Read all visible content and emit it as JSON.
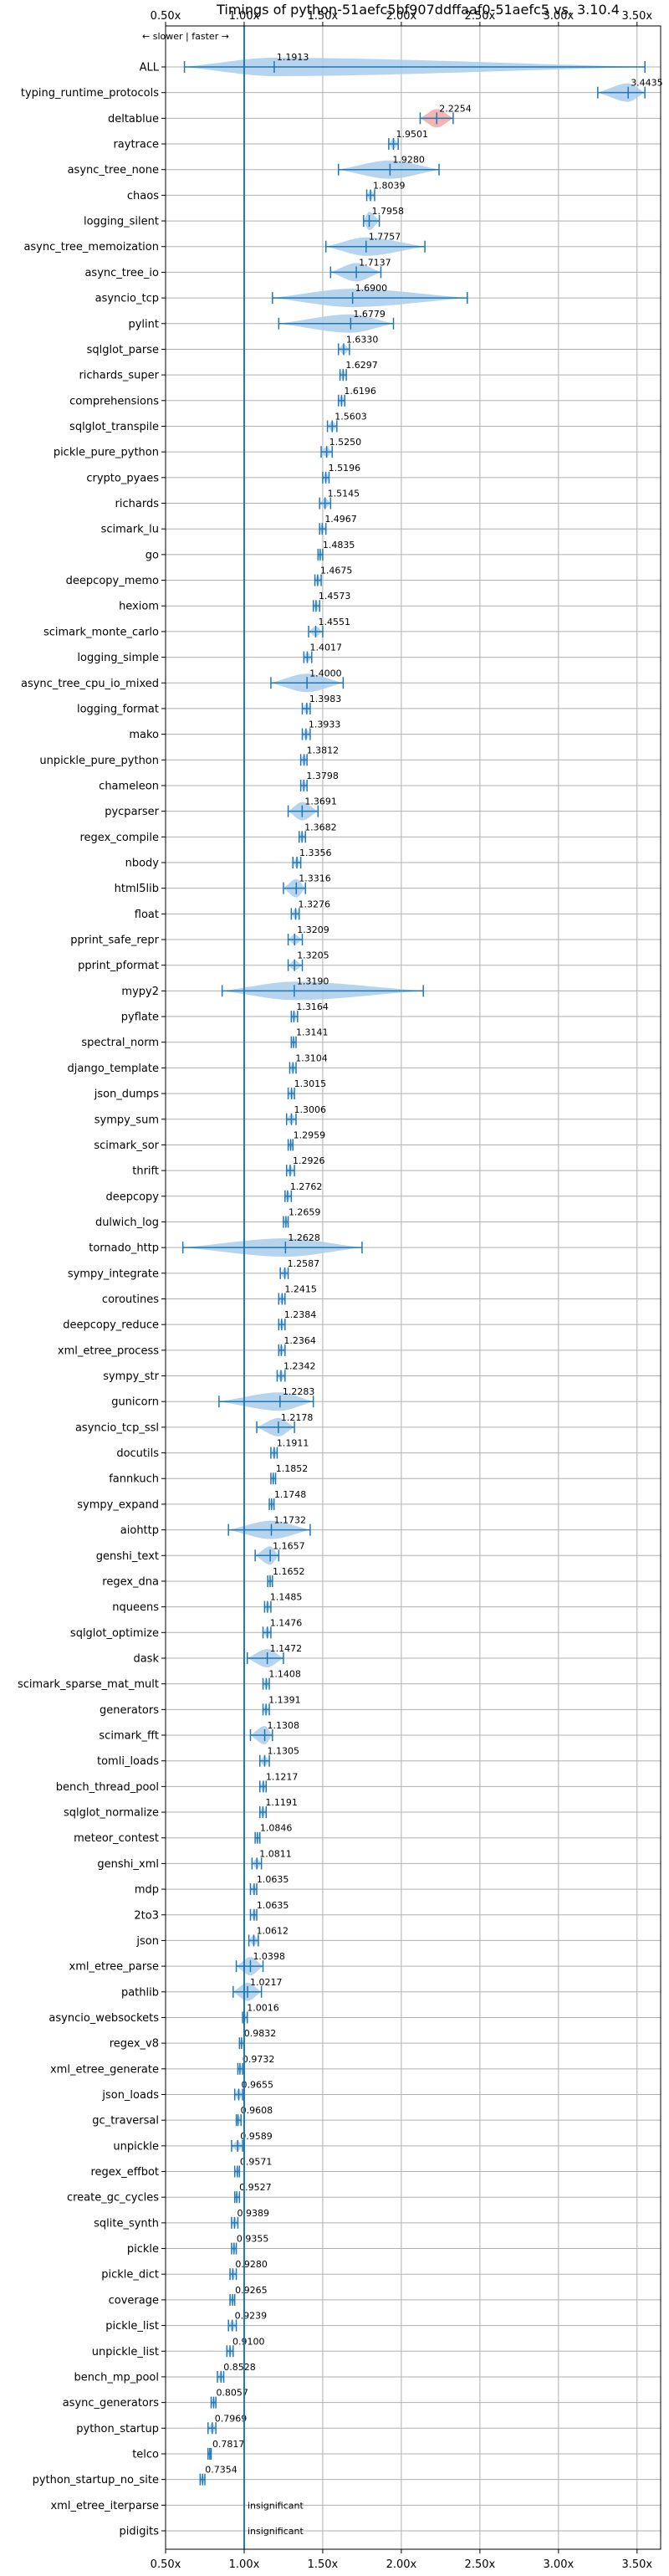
{
  "chart_data": {
    "type": "violin",
    "title": "Timings of python-51aefc5bf907ddffaaf0-51aefc5 vs. 3.10.4",
    "subtitle": "← slower | faster →",
    "x_ticks": [
      "0.50x",
      "1.00x",
      "1.50x",
      "2.00x",
      "2.50x",
      "3.00x",
      "3.50x"
    ],
    "x_tick_values": [
      0.5,
      1.0,
      1.5,
      2.0,
      2.5,
      3.0,
      3.5
    ],
    "xlim": [
      0.5,
      3.65
    ],
    "reference_x": 1.0,
    "grid": true,
    "colors": {
      "violin": "#a9cdea",
      "violin_slow": "#f4a6a6",
      "line": "#1f77b4",
      "reference": "#1f77b4",
      "grid": "#b0b0b0"
    },
    "benchmarks": [
      {
        "name": "ALL",
        "value": 1.1913,
        "label": "1.1913",
        "min": 0.62,
        "max": 3.55
      },
      {
        "name": "typing_runtime_protocols",
        "value": 3.4435,
        "label": "3.4435",
        "min": 3.25,
        "max": 3.55
      },
      {
        "name": "deltablue",
        "value": 2.2254,
        "label": "2.2254",
        "min": 2.12,
        "max": 2.33
      },
      {
        "name": "raytrace",
        "value": 1.9501,
        "label": "1.9501",
        "min": 1.92,
        "max": 1.98
      },
      {
        "name": "async_tree_none",
        "value": 1.928,
        "label": "1.9280",
        "min": 1.6,
        "max": 2.24
      },
      {
        "name": "chaos",
        "value": 1.8039,
        "label": "1.8039",
        "min": 1.78,
        "max": 1.83
      },
      {
        "name": "logging_silent",
        "value": 1.7958,
        "label": "1.7958",
        "min": 1.76,
        "max": 1.86
      },
      {
        "name": "async_tree_memoization",
        "value": 1.7757,
        "label": "1.7757",
        "min": 1.52,
        "max": 2.15
      },
      {
        "name": "async_tree_io",
        "value": 1.7137,
        "label": "1.7137",
        "min": 1.55,
        "max": 1.87
      },
      {
        "name": "asyncio_tcp",
        "value": 1.69,
        "label": "1.6900",
        "min": 1.18,
        "max": 2.42
      },
      {
        "name": "pylint",
        "value": 1.6779,
        "label": "1.6779",
        "min": 1.22,
        "max": 1.95
      },
      {
        "name": "sqlglot_parse",
        "value": 1.633,
        "label": "1.6330",
        "min": 1.6,
        "max": 1.67
      },
      {
        "name": "richards_super",
        "value": 1.6297,
        "label": "1.6297",
        "min": 1.61,
        "max": 1.65
      },
      {
        "name": "comprehensions",
        "value": 1.6196,
        "label": "1.6196",
        "min": 1.6,
        "max": 1.64
      },
      {
        "name": "sqlglot_transpile",
        "value": 1.5603,
        "label": "1.5603",
        "min": 1.53,
        "max": 1.59
      },
      {
        "name": "pickle_pure_python",
        "value": 1.525,
        "label": "1.5250",
        "min": 1.49,
        "max": 1.56
      },
      {
        "name": "crypto_pyaes",
        "value": 1.5196,
        "label": "1.5196",
        "min": 1.5,
        "max": 1.54
      },
      {
        "name": "richards",
        "value": 1.5145,
        "label": "1.5145",
        "min": 1.48,
        "max": 1.55
      },
      {
        "name": "scimark_lu",
        "value": 1.4967,
        "label": "1.4967",
        "min": 1.48,
        "max": 1.52
      },
      {
        "name": "go",
        "value": 1.4835,
        "label": "1.4835",
        "min": 1.47,
        "max": 1.5
      },
      {
        "name": "deepcopy_memo",
        "value": 1.4675,
        "label": "1.4675",
        "min": 1.45,
        "max": 1.49
      },
      {
        "name": "hexiom",
        "value": 1.4573,
        "label": "1.4573",
        "min": 1.44,
        "max": 1.48
      },
      {
        "name": "scimark_monte_carlo",
        "value": 1.4551,
        "label": "1.4551",
        "min": 1.41,
        "max": 1.5
      },
      {
        "name": "logging_simple",
        "value": 1.4017,
        "label": "1.4017",
        "min": 1.38,
        "max": 1.43
      },
      {
        "name": "async_tree_cpu_io_mixed",
        "value": 1.4,
        "label": "1.4000",
        "min": 1.17,
        "max": 1.63
      },
      {
        "name": "logging_format",
        "value": 1.3983,
        "label": "1.3983",
        "min": 1.37,
        "max": 1.42
      },
      {
        "name": "mako",
        "value": 1.3933,
        "label": "1.3933",
        "min": 1.37,
        "max": 1.42
      },
      {
        "name": "unpickle_pure_python",
        "value": 1.3812,
        "label": "1.3812",
        "min": 1.36,
        "max": 1.4
      },
      {
        "name": "chameleon",
        "value": 1.3798,
        "label": "1.3798",
        "min": 1.36,
        "max": 1.4
      },
      {
        "name": "pycparser",
        "value": 1.3691,
        "label": "1.3691",
        "min": 1.28,
        "max": 1.47
      },
      {
        "name": "regex_compile",
        "value": 1.3682,
        "label": "1.3682",
        "min": 1.35,
        "max": 1.39
      },
      {
        "name": "nbody",
        "value": 1.3356,
        "label": "1.3356",
        "min": 1.31,
        "max": 1.36
      },
      {
        "name": "html5lib",
        "value": 1.3316,
        "label": "1.3316",
        "min": 1.25,
        "max": 1.39
      },
      {
        "name": "float",
        "value": 1.3276,
        "label": "1.3276",
        "min": 1.3,
        "max": 1.35
      },
      {
        "name": "pprint_safe_repr",
        "value": 1.3209,
        "label": "1.3209",
        "min": 1.28,
        "max": 1.37
      },
      {
        "name": "pprint_pformat",
        "value": 1.3205,
        "label": "1.3205",
        "min": 1.28,
        "max": 1.37
      },
      {
        "name": "mypy2",
        "value": 1.319,
        "label": "1.3190",
        "min": 0.86,
        "max": 2.14
      },
      {
        "name": "pyflate",
        "value": 1.3164,
        "label": "1.3164",
        "min": 1.3,
        "max": 1.34
      },
      {
        "name": "spectral_norm",
        "value": 1.3141,
        "label": "1.3141",
        "min": 1.3,
        "max": 1.33
      },
      {
        "name": "django_template",
        "value": 1.3104,
        "label": "1.3104",
        "min": 1.29,
        "max": 1.33
      },
      {
        "name": "json_dumps",
        "value": 1.3015,
        "label": "1.3015",
        "min": 1.28,
        "max": 1.32
      },
      {
        "name": "sympy_sum",
        "value": 1.3006,
        "label": "1.3006",
        "min": 1.27,
        "max": 1.33
      },
      {
        "name": "scimark_sor",
        "value": 1.2959,
        "label": "1.2959",
        "min": 1.28,
        "max": 1.31
      },
      {
        "name": "thrift",
        "value": 1.2926,
        "label": "1.2926",
        "min": 1.27,
        "max": 1.32
      },
      {
        "name": "deepcopy",
        "value": 1.2762,
        "label": "1.2762",
        "min": 1.26,
        "max": 1.3
      },
      {
        "name": "dulwich_log",
        "value": 1.2659,
        "label": "1.2659",
        "min": 1.25,
        "max": 1.28
      },
      {
        "name": "tornado_http",
        "value": 1.2628,
        "label": "1.2628",
        "min": 0.61,
        "max": 1.75
      },
      {
        "name": "sympy_integrate",
        "value": 1.2587,
        "label": "1.2587",
        "min": 1.23,
        "max": 1.28
      },
      {
        "name": "coroutines",
        "value": 1.2415,
        "label": "1.2415",
        "min": 1.22,
        "max": 1.26
      },
      {
        "name": "deepcopy_reduce",
        "value": 1.2384,
        "label": "1.2384",
        "min": 1.22,
        "max": 1.26
      },
      {
        "name": "xml_etree_process",
        "value": 1.2364,
        "label": "1.2364",
        "min": 1.22,
        "max": 1.26
      },
      {
        "name": "sympy_str",
        "value": 1.2342,
        "label": "1.2342",
        "min": 1.21,
        "max": 1.26
      },
      {
        "name": "gunicorn",
        "value": 1.2283,
        "label": "1.2283",
        "min": 0.84,
        "max": 1.44
      },
      {
        "name": "asyncio_tcp_ssl",
        "value": 1.2178,
        "label": "1.2178",
        "min": 1.08,
        "max": 1.32
      },
      {
        "name": "docutils",
        "value": 1.1911,
        "label": "1.1911",
        "min": 1.17,
        "max": 1.21
      },
      {
        "name": "fannkuch",
        "value": 1.1852,
        "label": "1.1852",
        "min": 1.17,
        "max": 1.2
      },
      {
        "name": "sympy_expand",
        "value": 1.1748,
        "label": "1.1748",
        "min": 1.16,
        "max": 1.19
      },
      {
        "name": "aiohttp",
        "value": 1.1732,
        "label": "1.1732",
        "min": 0.9,
        "max": 1.42
      },
      {
        "name": "genshi_text",
        "value": 1.1657,
        "label": "1.1657",
        "min": 1.07,
        "max": 1.22
      },
      {
        "name": "regex_dna",
        "value": 1.1652,
        "label": "1.1652",
        "min": 1.15,
        "max": 1.18
      },
      {
        "name": "nqueens",
        "value": 1.1485,
        "label": "1.1485",
        "min": 1.13,
        "max": 1.17
      },
      {
        "name": "sqlglot_optimize",
        "value": 1.1476,
        "label": "1.1476",
        "min": 1.12,
        "max": 1.17
      },
      {
        "name": "dask",
        "value": 1.1472,
        "label": "1.1472",
        "min": 1.02,
        "max": 1.25
      },
      {
        "name": "scimark_sparse_mat_mult",
        "value": 1.1408,
        "label": "1.1408",
        "min": 1.12,
        "max": 1.16
      },
      {
        "name": "generators",
        "value": 1.1391,
        "label": "1.1391",
        "min": 1.12,
        "max": 1.16
      },
      {
        "name": "scimark_fft",
        "value": 1.1308,
        "label": "1.1308",
        "min": 1.04,
        "max": 1.18
      },
      {
        "name": "tomli_loads",
        "value": 1.1305,
        "label": "1.1305",
        "min": 1.1,
        "max": 1.16
      },
      {
        "name": "bench_thread_pool",
        "value": 1.1217,
        "label": "1.1217",
        "min": 1.1,
        "max": 1.14
      },
      {
        "name": "sqlglot_normalize",
        "value": 1.1191,
        "label": "1.1191",
        "min": 1.1,
        "max": 1.14
      },
      {
        "name": "meteor_contest",
        "value": 1.0846,
        "label": "1.0846",
        "min": 1.07,
        "max": 1.1
      },
      {
        "name": "genshi_xml",
        "value": 1.0811,
        "label": "1.0811",
        "min": 1.05,
        "max": 1.11
      },
      {
        "name": "mdp",
        "value": 1.0635,
        "label": "1.0635",
        "min": 1.04,
        "max": 1.08
      },
      {
        "name": "2to3",
        "value": 1.0635,
        "label": "1.0635",
        "min": 1.04,
        "max": 1.08
      },
      {
        "name": "json",
        "value": 1.0612,
        "label": "1.0612",
        "min": 1.03,
        "max": 1.09
      },
      {
        "name": "xml_etree_parse",
        "value": 1.0398,
        "label": "1.0398",
        "min": 0.95,
        "max": 1.12
      },
      {
        "name": "pathlib",
        "value": 1.0217,
        "label": "1.0217",
        "min": 0.93,
        "max": 1.11
      },
      {
        "name": "asyncio_websockets",
        "value": 1.0016,
        "label": "1.0016",
        "min": 0.99,
        "max": 1.02
      },
      {
        "name": "regex_v8",
        "value": 0.9832,
        "label": "0.9832",
        "min": 0.97,
        "max": 1.0
      },
      {
        "name": "xml_etree_generate",
        "value": 0.9732,
        "label": "0.9732",
        "min": 0.96,
        "max": 0.99
      },
      {
        "name": "json_loads",
        "value": 0.9655,
        "label": "0.9655",
        "min": 0.94,
        "max": 0.99
      },
      {
        "name": "gc_traversal",
        "value": 0.9608,
        "label": "0.9608",
        "min": 0.95,
        "max": 0.98
      },
      {
        "name": "unpickle",
        "value": 0.9589,
        "label": "0.9589",
        "min": 0.92,
        "max": 0.99
      },
      {
        "name": "regex_effbot",
        "value": 0.9571,
        "label": "0.9571",
        "min": 0.94,
        "max": 0.97
      },
      {
        "name": "create_gc_cycles",
        "value": 0.9527,
        "label": "0.9527",
        "min": 0.94,
        "max": 0.97
      },
      {
        "name": "sqlite_synth",
        "value": 0.9389,
        "label": "0.9389",
        "min": 0.92,
        "max": 0.96
      },
      {
        "name": "pickle",
        "value": 0.9355,
        "label": "0.9355",
        "min": 0.92,
        "max": 0.95
      },
      {
        "name": "pickle_dict",
        "value": 0.928,
        "label": "0.9280",
        "min": 0.91,
        "max": 0.95
      },
      {
        "name": "coverage",
        "value": 0.9265,
        "label": "0.9265",
        "min": 0.91,
        "max": 0.94
      },
      {
        "name": "pickle_list",
        "value": 0.9239,
        "label": "0.9239",
        "min": 0.9,
        "max": 0.95
      },
      {
        "name": "unpickle_list",
        "value": 0.91,
        "label": "0.9100",
        "min": 0.89,
        "max": 0.93
      },
      {
        "name": "bench_mp_pool",
        "value": 0.8528,
        "label": "0.8528",
        "min": 0.83,
        "max": 0.87
      },
      {
        "name": "async_generators",
        "value": 0.8057,
        "label": "0.8057",
        "min": 0.79,
        "max": 0.82
      },
      {
        "name": "python_startup",
        "value": 0.7969,
        "label": "0.7969",
        "min": 0.77,
        "max": 0.82
      },
      {
        "name": "telco",
        "value": 0.7817,
        "label": "0.7817",
        "min": 0.77,
        "max": 0.79
      },
      {
        "name": "python_startup_no_site",
        "value": 0.7354,
        "label": "0.7354",
        "min": 0.72,
        "max": 0.75
      },
      {
        "name": "xml_etree_iterparse",
        "value": null,
        "label": "insignificant"
      },
      {
        "name": "pidigits",
        "value": null,
        "label": "insignificant"
      }
    ]
  }
}
